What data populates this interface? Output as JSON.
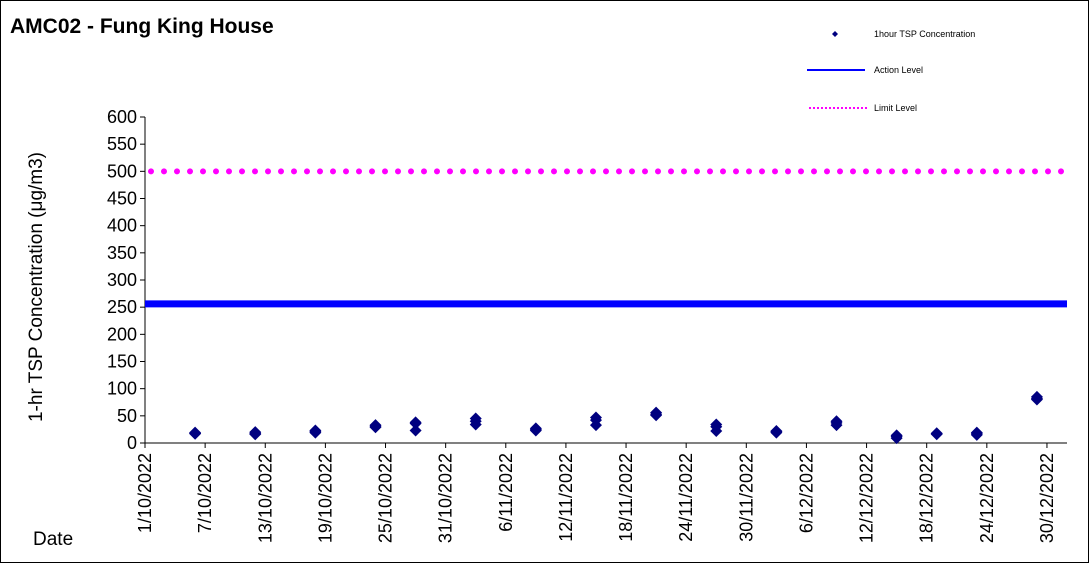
{
  "title": "AMC02 - Fung King House",
  "chart_data": {
    "type": "scatter",
    "title": "AMC02 - Fung King House",
    "xlabel": "Date",
    "ylabel": "1-hr TSP Concentration (μg/m3)",
    "ylim": [
      0,
      600
    ],
    "yticks": [
      "0",
      "50",
      "100",
      "150",
      "200",
      "250",
      "300",
      "350",
      "400",
      "450",
      "500",
      "550",
      "600"
    ],
    "xlim": [
      "1/10/2022",
      "1/1/2023"
    ],
    "xtick_labels": [
      "1/10/2022",
      "7/10/2022",
      "13/10/2022",
      "19/10/2022",
      "25/10/2022",
      "31/10/2022",
      "6/11/2022",
      "12/11/2022",
      "18/11/2022",
      "24/11/2022",
      "30/11/2022",
      "6/12/2022",
      "12/12/2022",
      "18/12/2022",
      "24/12/2022",
      "30/12/2022"
    ],
    "legend_position": "top-right",
    "grid": false,
    "series": [
      {
        "name": "1hour TSP Concentration",
        "kind": "scatter",
        "color": "#000080",
        "points": [
          [
            "6/10/2022",
            19
          ],
          [
            "6/10/2022",
            17
          ],
          [
            "6/10/2022",
            18
          ],
          [
            "12/10/2022",
            20
          ],
          [
            "12/10/2022",
            16
          ],
          [
            "12/10/2022",
            18
          ],
          [
            "18/10/2022",
            23
          ],
          [
            "18/10/2022",
            19
          ],
          [
            "18/10/2022",
            21
          ],
          [
            "24/10/2022",
            33
          ],
          [
            "24/10/2022",
            29
          ],
          [
            "24/10/2022",
            31
          ],
          [
            "28/10/2022",
            38
          ],
          [
            "28/10/2022",
            23
          ],
          [
            "28/10/2022",
            36
          ],
          [
            "3/11/2022",
            45
          ],
          [
            "3/11/2022",
            34
          ],
          [
            "3/11/2022",
            40
          ],
          [
            "9/11/2022",
            27
          ],
          [
            "9/11/2022",
            23
          ],
          [
            "9/11/2022",
            25
          ],
          [
            "15/11/2022",
            47
          ],
          [
            "15/11/2022",
            33
          ],
          [
            "15/11/2022",
            42
          ],
          [
            "21/11/2022",
            56
          ],
          [
            "21/11/2022",
            51
          ],
          [
            "21/11/2022",
            53
          ],
          [
            "27/11/2022",
            34
          ],
          [
            "27/11/2022",
            22
          ],
          [
            "27/11/2022",
            30
          ],
          [
            "3/12/2022",
            22
          ],
          [
            "3/12/2022",
            19
          ],
          [
            "3/12/2022",
            21
          ],
          [
            "9/12/2022",
            40
          ],
          [
            "9/12/2022",
            33
          ],
          [
            "9/12/2022",
            37
          ],
          [
            "15/12/2022",
            14
          ],
          [
            "15/12/2022",
            9
          ],
          [
            "15/12/2022",
            12
          ],
          [
            "19/12/2022",
            18
          ],
          [
            "19/12/2022",
            16
          ],
          [
            "19/12/2022",
            17
          ],
          [
            "23/12/2022",
            19
          ],
          [
            "23/12/2022",
            15
          ],
          [
            "23/12/2022",
            17
          ],
          [
            "29/12/2022",
            85
          ],
          [
            "29/12/2022",
            80
          ],
          [
            "29/12/2022",
            82
          ]
        ]
      },
      {
        "name": "Action Level",
        "kind": "line",
        "style": "solid",
        "color": "#0000ff",
        "value": 256
      },
      {
        "name": "Limit Level",
        "kind": "line",
        "style": "dotted",
        "color": "#ff00ff",
        "value": 500
      }
    ]
  }
}
